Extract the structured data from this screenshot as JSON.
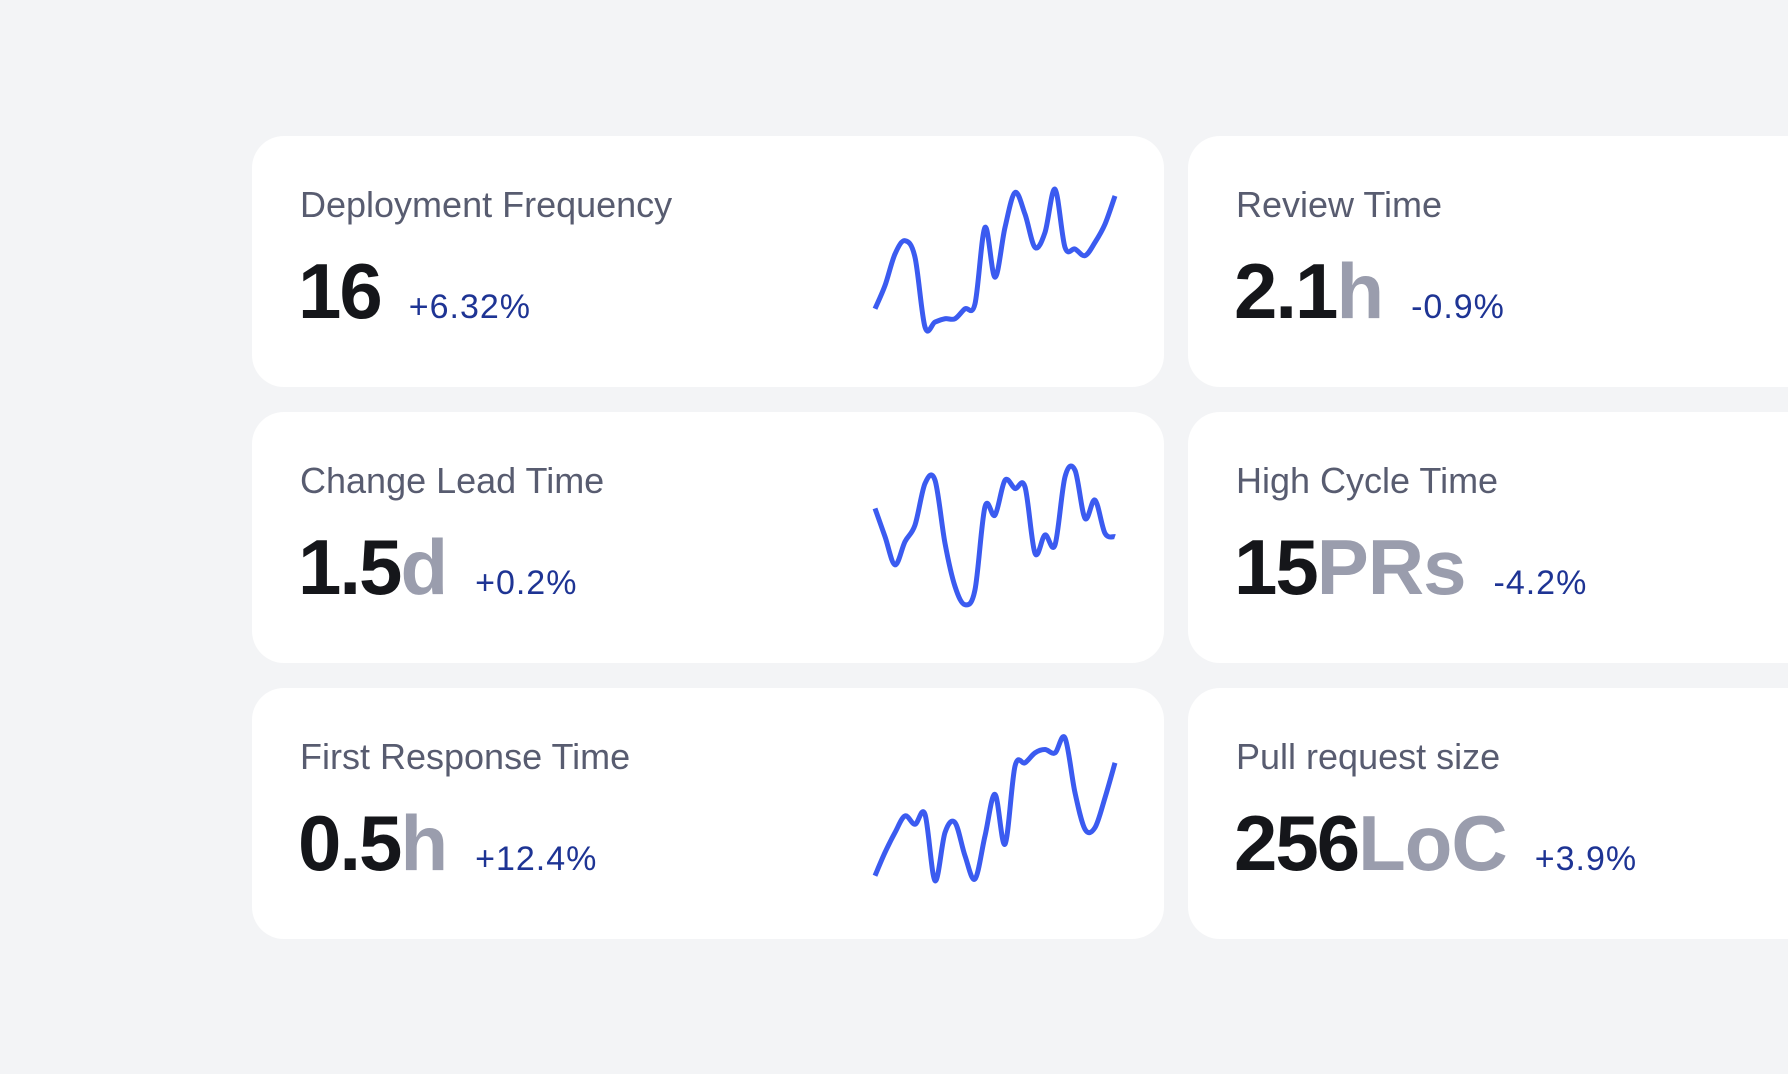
{
  "colors": {
    "background": "#f3f4f6",
    "card": "#ffffff",
    "title": "#585c70",
    "value": "#15161a",
    "unit": "#9a9dad",
    "change": "#1e3494",
    "sparkline": "#3b5bf0"
  },
  "cards": [
    {
      "title": "Deployment Frequency",
      "value": "16",
      "unit": "",
      "change": "+6.32%",
      "trend": [
        85,
        155,
        250,
        290,
        240,
        30,
        45,
        55,
        55,
        85,
        100,
        330,
        180,
        330,
        435,
        370,
        270,
        315,
        445,
        270,
        265,
        245,
        285,
        340,
        425
      ]
    },
    {
      "title": "Review Time",
      "value": "2.1",
      "unit": "h",
      "change": "-0.9%"
    },
    {
      "title": "Change Lead Time",
      "value": "1.5",
      "unit": "d",
      "change": "+0.2%",
      "trend": [
        315,
        230,
        145,
        215,
        265,
        390,
        400,
        210,
        80,
        25,
        70,
        320,
        295,
        400,
        375,
        380,
        180,
        235,
        205,
        410,
        430,
        285,
        340,
        240,
        230
      ]
    },
    {
      "title": "High Cycle Time",
      "value": "15",
      "unit": "PRs",
      "change": "-4.2%"
    },
    {
      "title": "First Response Time",
      "value": "0.5",
      "unit": "h",
      "change": "+12.4%",
      "trend": [
        40,
        110,
        170,
        220,
        195,
        225,
        25,
        170,
        200,
        100,
        30,
        160,
        285,
        135,
        370,
        380,
        410,
        420,
        410,
        455,
        290,
        180,
        185,
        275,
        380
      ]
    },
    {
      "title": "Pull request size",
      "value": "256",
      "unit": "LoC",
      "change": "+3.9%"
    }
  ]
}
